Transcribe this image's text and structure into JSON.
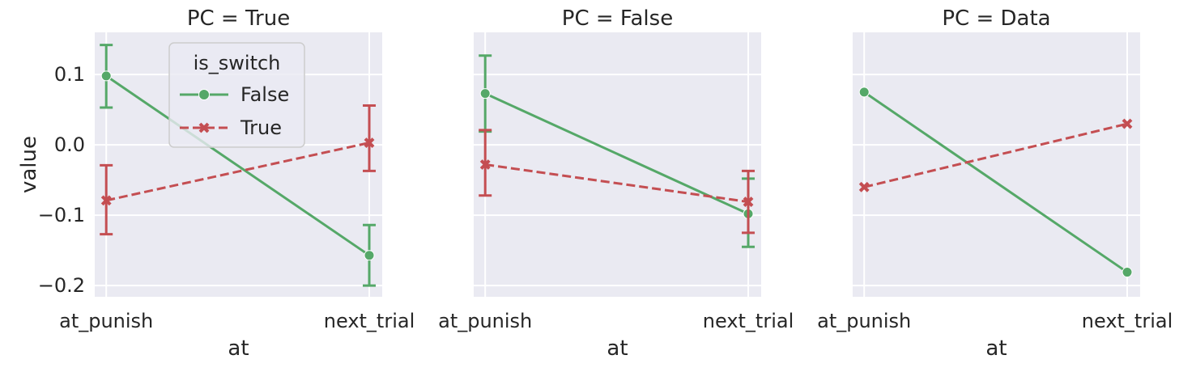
{
  "chart_data": {
    "type": "line",
    "ylabel": "value",
    "xlabel": "at",
    "categories": [
      "at_punish",
      "next_trial"
    ],
    "yticks": [
      -0.2,
      -0.1,
      0.0,
      0.1
    ],
    "ytick_labels": [
      "−0.2",
      "−0.1",
      "0.0",
      "0.1"
    ],
    "ylim": [
      -0.216,
      0.16
    ],
    "legend": {
      "title": "is_switch",
      "placement": "upper-center of first panel",
      "entries": [
        "False",
        "True"
      ]
    },
    "styles": {
      "False": {
        "color": "#55a868",
        "marker": "circle",
        "dash": "solid"
      },
      "True": {
        "color": "#c44e52",
        "marker": "x",
        "dash": "dashed"
      }
    },
    "panels": [
      {
        "title": "PC = True",
        "series": [
          {
            "name": "False",
            "values": [
              0.098,
              -0.157
            ],
            "err_low": [
              0.053,
              -0.2
            ],
            "err_high": [
              0.142,
              -0.114
            ]
          },
          {
            "name": "True",
            "values": [
              -0.079,
              0.003
            ],
            "err_low": [
              -0.127,
              -0.037
            ],
            "err_high": [
              -0.029,
              0.056
            ]
          }
        ]
      },
      {
        "title": "PC = False",
        "series": [
          {
            "name": "False",
            "values": [
              0.073,
              -0.098
            ],
            "err_low": [
              0.019,
              -0.145
            ],
            "err_high": [
              0.127,
              -0.048
            ]
          },
          {
            "name": "True",
            "values": [
              -0.028,
              -0.081
            ],
            "err_low": [
              -0.072,
              -0.125
            ],
            "err_high": [
              0.021,
              -0.037
            ]
          }
        ]
      },
      {
        "title": "PC = Data",
        "series": [
          {
            "name": "False",
            "values": [
              0.075,
              -0.181
            ]
          },
          {
            "name": "True",
            "values": [
              -0.06,
              0.03
            ]
          }
        ]
      }
    ]
  }
}
